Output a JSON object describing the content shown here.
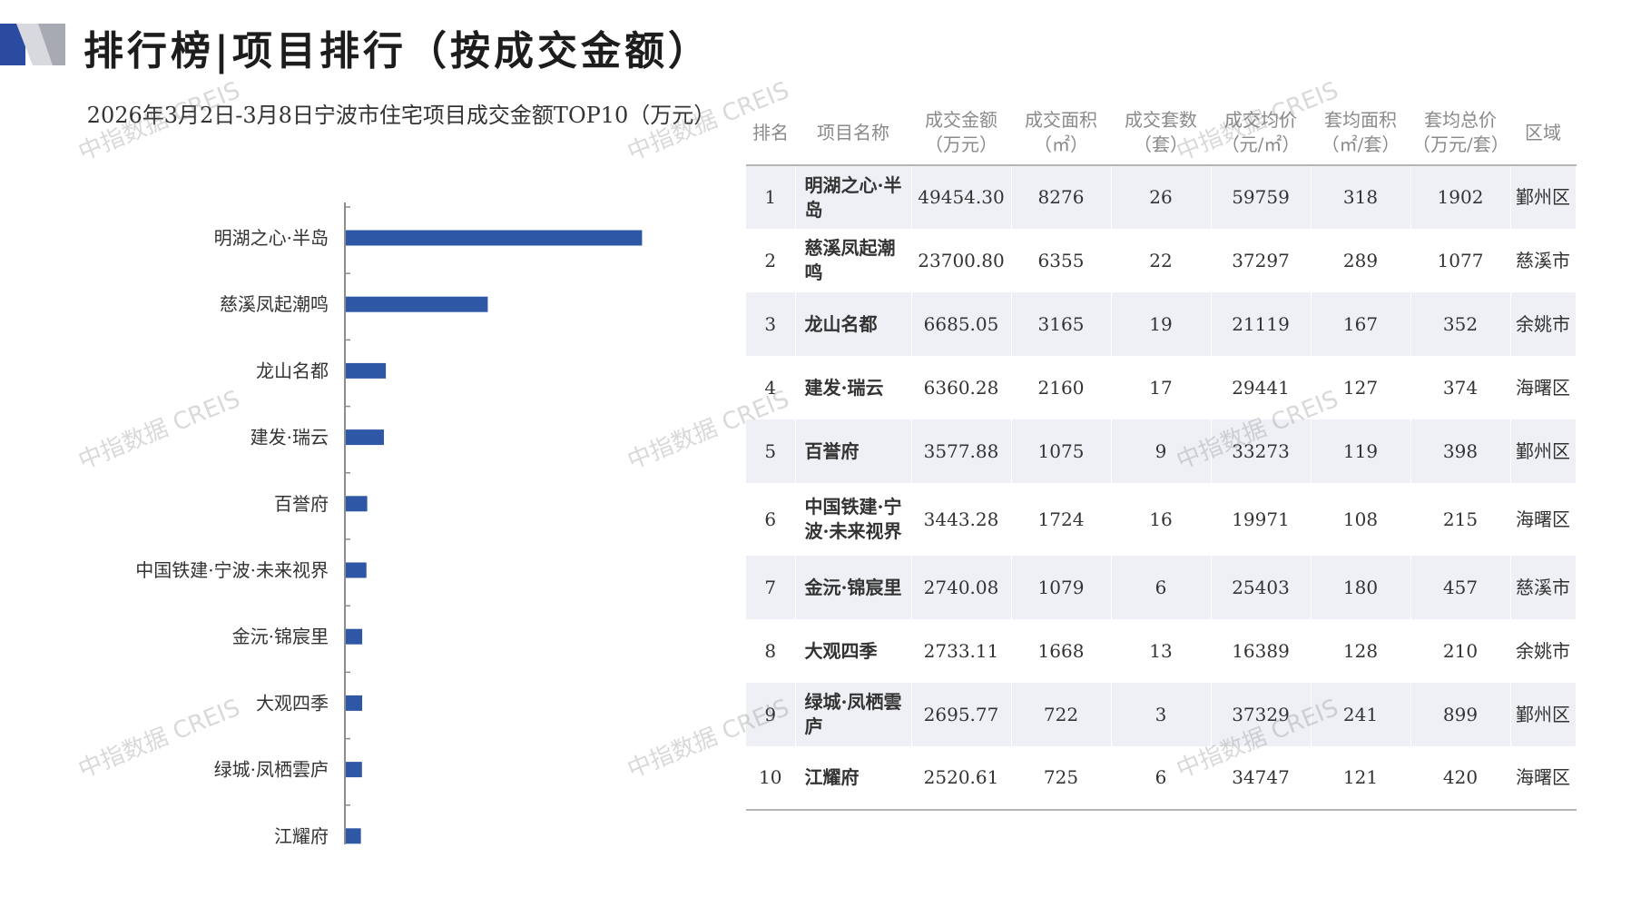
{
  "header": {
    "title": "排行榜|项目排行（按成交金额）"
  },
  "watermark": "中指数据 CREIS",
  "colors": {
    "bar": "#2e58a6",
    "logo_blue": "#2b4ba0",
    "logo_grey": "#a7aab3"
  },
  "chart_data": {
    "type": "bar",
    "orientation": "horizontal",
    "title": "2026年3月2日-3月8日宁波市住宅项目成交金额TOP10（万元）",
    "categories": [
      "明湖之心·半岛",
      "慈溪凤起潮鸣",
      "龙山名都",
      "建发·瑞云",
      "百誉府",
      "中国铁建·宁波·未来视界",
      "金沅·锦宸里",
      "大观四季",
      "绿城·凤栖雲庐",
      "江耀府"
    ],
    "values": [
      49454.3,
      23700.8,
      6685.05,
      6360.28,
      3577.88,
      3443.28,
      2740.08,
      2733.11,
      2695.77,
      2520.61
    ],
    "xlim": [
      0,
      100000
    ],
    "grid": false,
    "legend": false
  },
  "table": {
    "headers": [
      {
        "label": "排名",
        "unit": ""
      },
      {
        "label": "项目名称",
        "unit": ""
      },
      {
        "label": "成交金额",
        "unit": "（万元）"
      },
      {
        "label": "成交面积",
        "unit": "（㎡）"
      },
      {
        "label": "成交套数",
        "unit": "（套）"
      },
      {
        "label": "成交均价",
        "unit": "（元/㎡）"
      },
      {
        "label": "套均面积",
        "unit": "（㎡/套）"
      },
      {
        "label": "套均总价",
        "unit": "（万元/套）"
      },
      {
        "label": "区域",
        "unit": ""
      }
    ],
    "rows": [
      [
        "1",
        "明湖之心·半岛",
        "49454.30",
        "8276",
        "26",
        "59759",
        "318",
        "1902",
        "鄞州区"
      ],
      [
        "2",
        "慈溪凤起潮鸣",
        "23700.80",
        "6355",
        "22",
        "37297",
        "289",
        "1077",
        "慈溪市"
      ],
      [
        "3",
        "龙山名都",
        "6685.05",
        "3165",
        "19",
        "21119",
        "167",
        "352",
        "余姚市"
      ],
      [
        "4",
        "建发·瑞云",
        "6360.28",
        "2160",
        "17",
        "29441",
        "127",
        "374",
        "海曙区"
      ],
      [
        "5",
        "百誉府",
        "3577.88",
        "1075",
        "9",
        "33273",
        "119",
        "398",
        "鄞州区"
      ],
      [
        "6",
        "中国铁建·宁波·未来视界",
        "3443.28",
        "1724",
        "16",
        "19971",
        "108",
        "215",
        "海曙区"
      ],
      [
        "7",
        "金沅·锦宸里",
        "2740.08",
        "1079",
        "6",
        "25403",
        "180",
        "457",
        "慈溪市"
      ],
      [
        "8",
        "大观四季",
        "2733.11",
        "1668",
        "13",
        "16389",
        "128",
        "210",
        "余姚市"
      ],
      [
        "9",
        "绿城·凤栖雲庐",
        "2695.77",
        "722",
        "3",
        "37329",
        "241",
        "899",
        "鄞州区"
      ],
      [
        "10",
        "江耀府",
        "2520.61",
        "725",
        "6",
        "34747",
        "121",
        "420",
        "海曙区"
      ]
    ]
  }
}
